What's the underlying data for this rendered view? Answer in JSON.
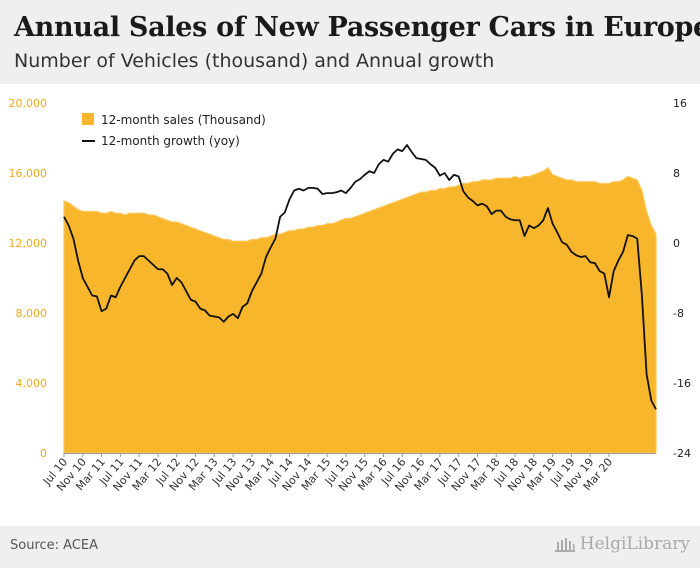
{
  "header": {
    "title": "Annual Sales of New Passenger Cars in Europe",
    "subtitle": "Number of Vehicles (thousand) and Annual growth"
  },
  "footer": {
    "source": "Source: ACEA",
    "brand": "HelgiLibrary"
  },
  "colors": {
    "area": "#f8b62d",
    "area_light": "#fbc758",
    "line": "#111111",
    "left_tick": "#f0a81f"
  },
  "chart_data": {
    "type": "area",
    "title": "",
    "left_axis": {
      "min": 0,
      "max": 20000,
      "ticks": [
        "0",
        "4,000",
        "8,000",
        "12,000",
        "16,000",
        "20,000"
      ]
    },
    "right_axis": {
      "min": -24,
      "max": 16,
      "ticks": [
        "-24",
        "-16",
        "-8",
        "0",
        "8",
        "16"
      ]
    },
    "x_labels": [
      "Jul 10",
      "Nov 10",
      "Mar 11",
      "Jul 11",
      "Nov 11",
      "Mar 12",
      "Jul 12",
      "Nov 12",
      "Mar 13",
      "Jul 13",
      "Nov 13",
      "Mar 14",
      "Jul 14",
      "Nov 14",
      "Mar 15",
      "Jul 15",
      "Nov 15",
      "Mar 16",
      "Jul 16",
      "Nov 16",
      "Mar 17",
      "Jul 17",
      "Nov 17",
      "Mar 18",
      "Jul 18",
      "Nov 18",
      "Mar 19",
      "Jul 19",
      "Nov 19",
      "Mar 20"
    ],
    "legend": {
      "placement": "top-left",
      "sales_label": "12-month sales (Thousand)",
      "growth_label": "12-month growth (yoy)"
    },
    "grid": false,
    "series": [
      {
        "name": "12-month sales (Thousand)",
        "axis": "left",
        "type": "area",
        "values": [
          14400,
          14300,
          14100,
          13900,
          13800,
          13800,
          13800,
          13800,
          13700,
          13700,
          13800,
          13700,
          13700,
          13600,
          13700,
          13700,
          13700,
          13700,
          13600,
          13600,
          13500,
          13400,
          13300,
          13200,
          13200,
          13100,
          13000,
          12900,
          12800,
          12700,
          12600,
          12500,
          12400,
          12300,
          12200,
          12200,
          12100,
          12100,
          12100,
          12100,
          12200,
          12200,
          12300,
          12300,
          12400,
          12500,
          12500,
          12600,
          12700,
          12700,
          12800,
          12800,
          12900,
          12900,
          13000,
          13000,
          13100,
          13100,
          13200,
          13300,
          13400,
          13400,
          13500,
          13600,
          13700,
          13800,
          13900,
          14000,
          14100,
          14200,
          14300,
          14400,
          14500,
          14600,
          14700,
          14800,
          14900,
          14900,
          15000,
          15000,
          15100,
          15100,
          15200,
          15200,
          15300,
          15400,
          15400,
          15500,
          15500,
          15600,
          15600,
          15600,
          15700,
          15700,
          15700,
          15700,
          15800,
          15700,
          15800,
          15800,
          15900,
          16000,
          16100,
          16300,
          15900,
          15800,
          15700,
          15600,
          15600,
          15500,
          15500,
          15500,
          15500,
          15500,
          15400,
          15400,
          15400,
          15500,
          15500,
          15600,
          15800,
          15700,
          15600,
          15000,
          13800,
          13000,
          12500
        ]
      },
      {
        "name": "12-month growth (yoy)",
        "axis": "right",
        "type": "line",
        "values": [
          3.0,
          2.0,
          0.5,
          -2.0,
          -4.0,
          -5.0,
          -6.0,
          -6.1,
          -7.8,
          -7.5,
          -6.0,
          -6.2,
          -5.0,
          -4.0,
          -3.0,
          -2.0,
          -1.5,
          -1.5,
          -2.0,
          -2.5,
          -3.0,
          -3.0,
          -3.5,
          -4.8,
          -4.0,
          -4.5,
          -5.5,
          -6.5,
          -6.7,
          -7.5,
          -7.7,
          -8.3,
          -8.4,
          -8.5,
          -9.0,
          -8.4,
          -8.1,
          -8.6,
          -7.3,
          -6.9,
          -5.5,
          -4.5,
          -3.5,
          -1.6,
          -0.5,
          0.5,
          3.0,
          3.5,
          5.0,
          6.0,
          6.2,
          6.0,
          6.3,
          6.3,
          6.2,
          5.6,
          5.7,
          5.7,
          5.8,
          6.0,
          5.7,
          6.3,
          7.0,
          7.3,
          7.8,
          8.2,
          8.0,
          9.0,
          9.5,
          9.3,
          10.2,
          10.7,
          10.5,
          11.2,
          10.4,
          9.7,
          9.6,
          9.5,
          9.0,
          8.6,
          7.7,
          8.0,
          7.2,
          7.8,
          7.6,
          5.9,
          5.2,
          4.8,
          4.3,
          4.5,
          4.2,
          3.3,
          3.7,
          3.7,
          3.0,
          2.7,
          2.6,
          2.6,
          0.8,
          2.0,
          1.7,
          2.0,
          2.6,
          4.0,
          2.2,
          1.2,
          0.1,
          -0.2,
          -1.0,
          -1.4,
          -1.6,
          -1.5,
          -2.2,
          -2.3,
          -3.2,
          -3.5,
          -6.2,
          -3.2,
          -2.0,
          -1.0,
          0.9,
          0.8,
          0.5,
          -6.0,
          -15.0,
          -18.0,
          -19.0
        ]
      }
    ]
  }
}
